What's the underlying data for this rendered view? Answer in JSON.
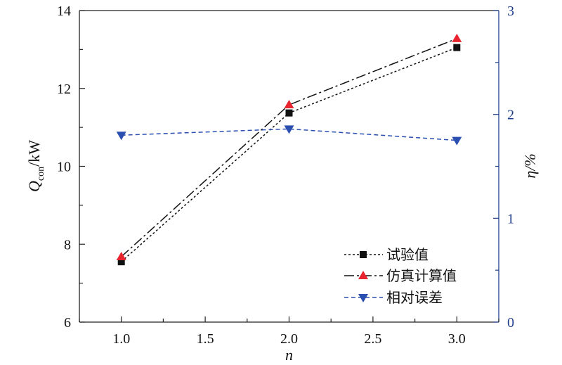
{
  "chart_data": {
    "type": "line",
    "x": [
      1.0,
      2.0,
      3.0
    ],
    "x_ticks": [
      "1.0",
      "1.5",
      "2.0",
      "2.5",
      "3.0"
    ],
    "xlim": [
      0.75,
      3.25
    ],
    "xlabel": "n",
    "ylabel_left": {
      "main": "Q",
      "subscript": "con",
      "unit": "/kW"
    },
    "ylim_left": [
      6,
      14
    ],
    "y_ticks_left": [
      "6",
      "8",
      "10",
      "12",
      "14"
    ],
    "ylabel_right": "η/%",
    "ylim_right": [
      0,
      3
    ],
    "y_ticks_right": [
      "0",
      "1",
      "2",
      "3"
    ],
    "right_axis_color": "#1f3e8c",
    "grid": false,
    "legend_position": "bottom-right",
    "series": [
      {
        "name": "试验值",
        "axis": "left",
        "values": [
          7.55,
          11.37,
          13.05
        ],
        "color": "#111111",
        "marker": "square",
        "dash": "3,3"
      },
      {
        "name": "仿真计算值",
        "axis": "left",
        "values": [
          7.68,
          11.58,
          13.28
        ],
        "color": "#111111",
        "marker": "triangle-up",
        "marker_color": "#e8252f",
        "dash": "14,4,3,4"
      },
      {
        "name": "相对误差",
        "axis": "right",
        "values": [
          1.8,
          1.86,
          1.75
        ],
        "color": "#2b4fb0",
        "marker": "triangle-down",
        "dash": "6,4"
      }
    ]
  }
}
